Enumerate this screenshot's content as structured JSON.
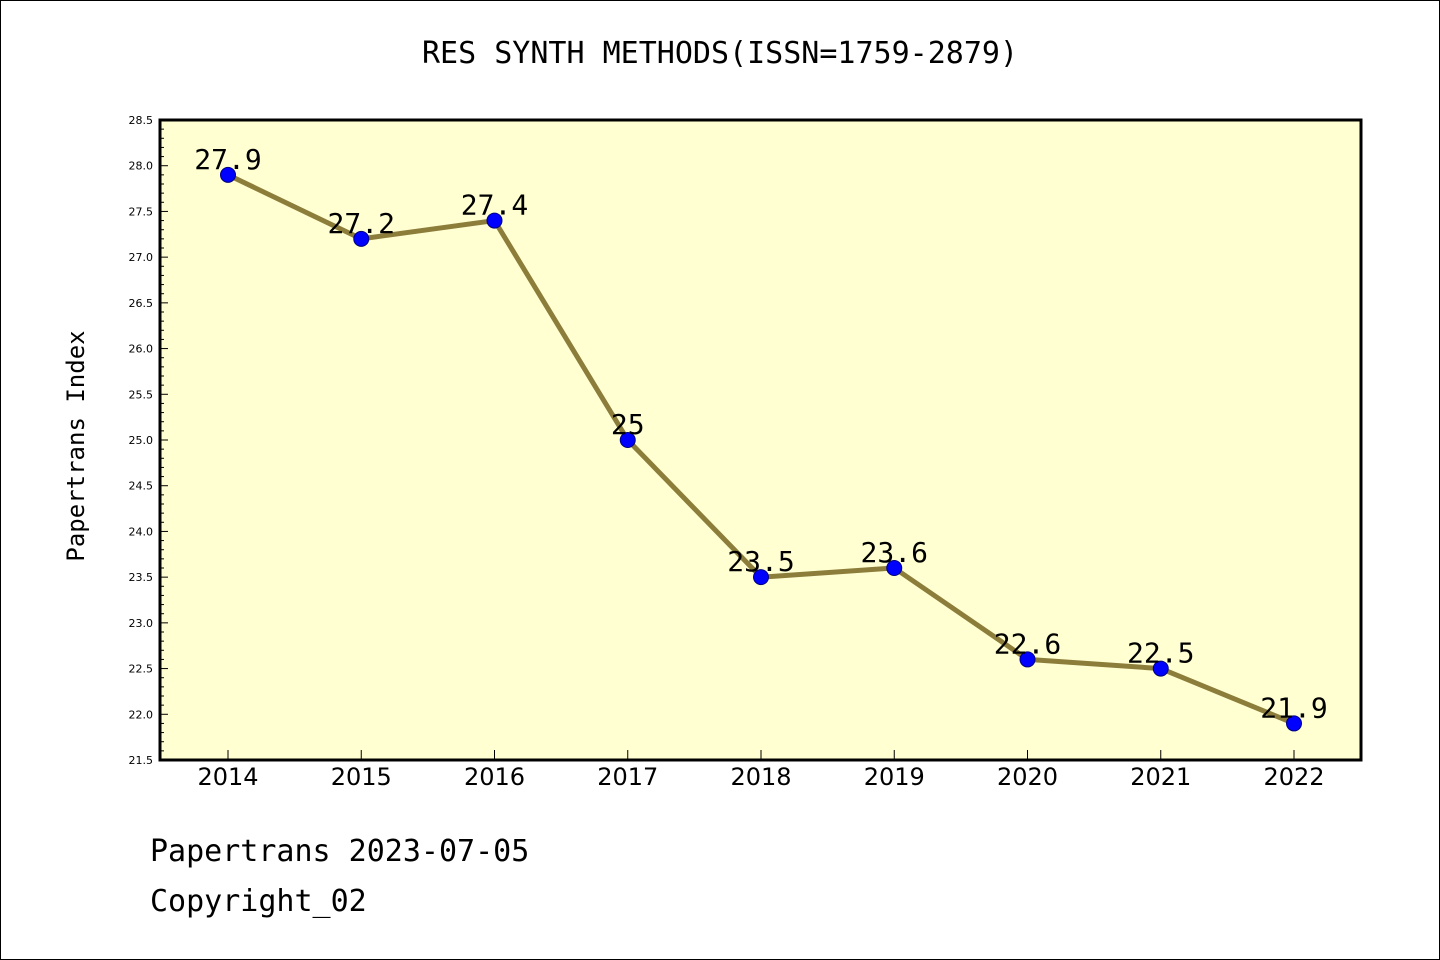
{
  "chart_data": {
    "type": "line",
    "title": "RES SYNTH METHODS(ISSN=1759-2879)",
    "xlabel": "",
    "ylabel": "Papertrans Index",
    "categories": [
      "2014",
      "2015",
      "2016",
      "2017",
      "2018",
      "2019",
      "2020",
      "2021",
      "2022"
    ],
    "series": [
      {
        "values": [
          27.9,
          27.2,
          27.4,
          25,
          23.5,
          23.6,
          22.6,
          22.5,
          21.9
        ],
        "point_labels": [
          "27.9",
          "27.2",
          "27.4",
          "25",
          "23.5",
          "23.6",
          "22.6",
          "22.5",
          "21.9"
        ]
      }
    ],
    "ylim": [
      21.5,
      28.5
    ],
    "y_ticks": [
      "21.5",
      "22.0",
      "22.5",
      "23.0",
      "23.5",
      "24.0",
      "24.5",
      "25.0",
      "25.5",
      "26.0",
      "26.5",
      "27.0",
      "27.5",
      "28.0",
      "28.5"
    ],
    "grid": false,
    "legend": "none",
    "colors": {
      "plot_background": "#ffffd2",
      "line": "#8c7d3a",
      "marker": "#0000ff",
      "marker_edge": "#000080"
    }
  },
  "footer": {
    "line1": "Papertrans 2023-07-05",
    "line2": "Copyright_02"
  }
}
